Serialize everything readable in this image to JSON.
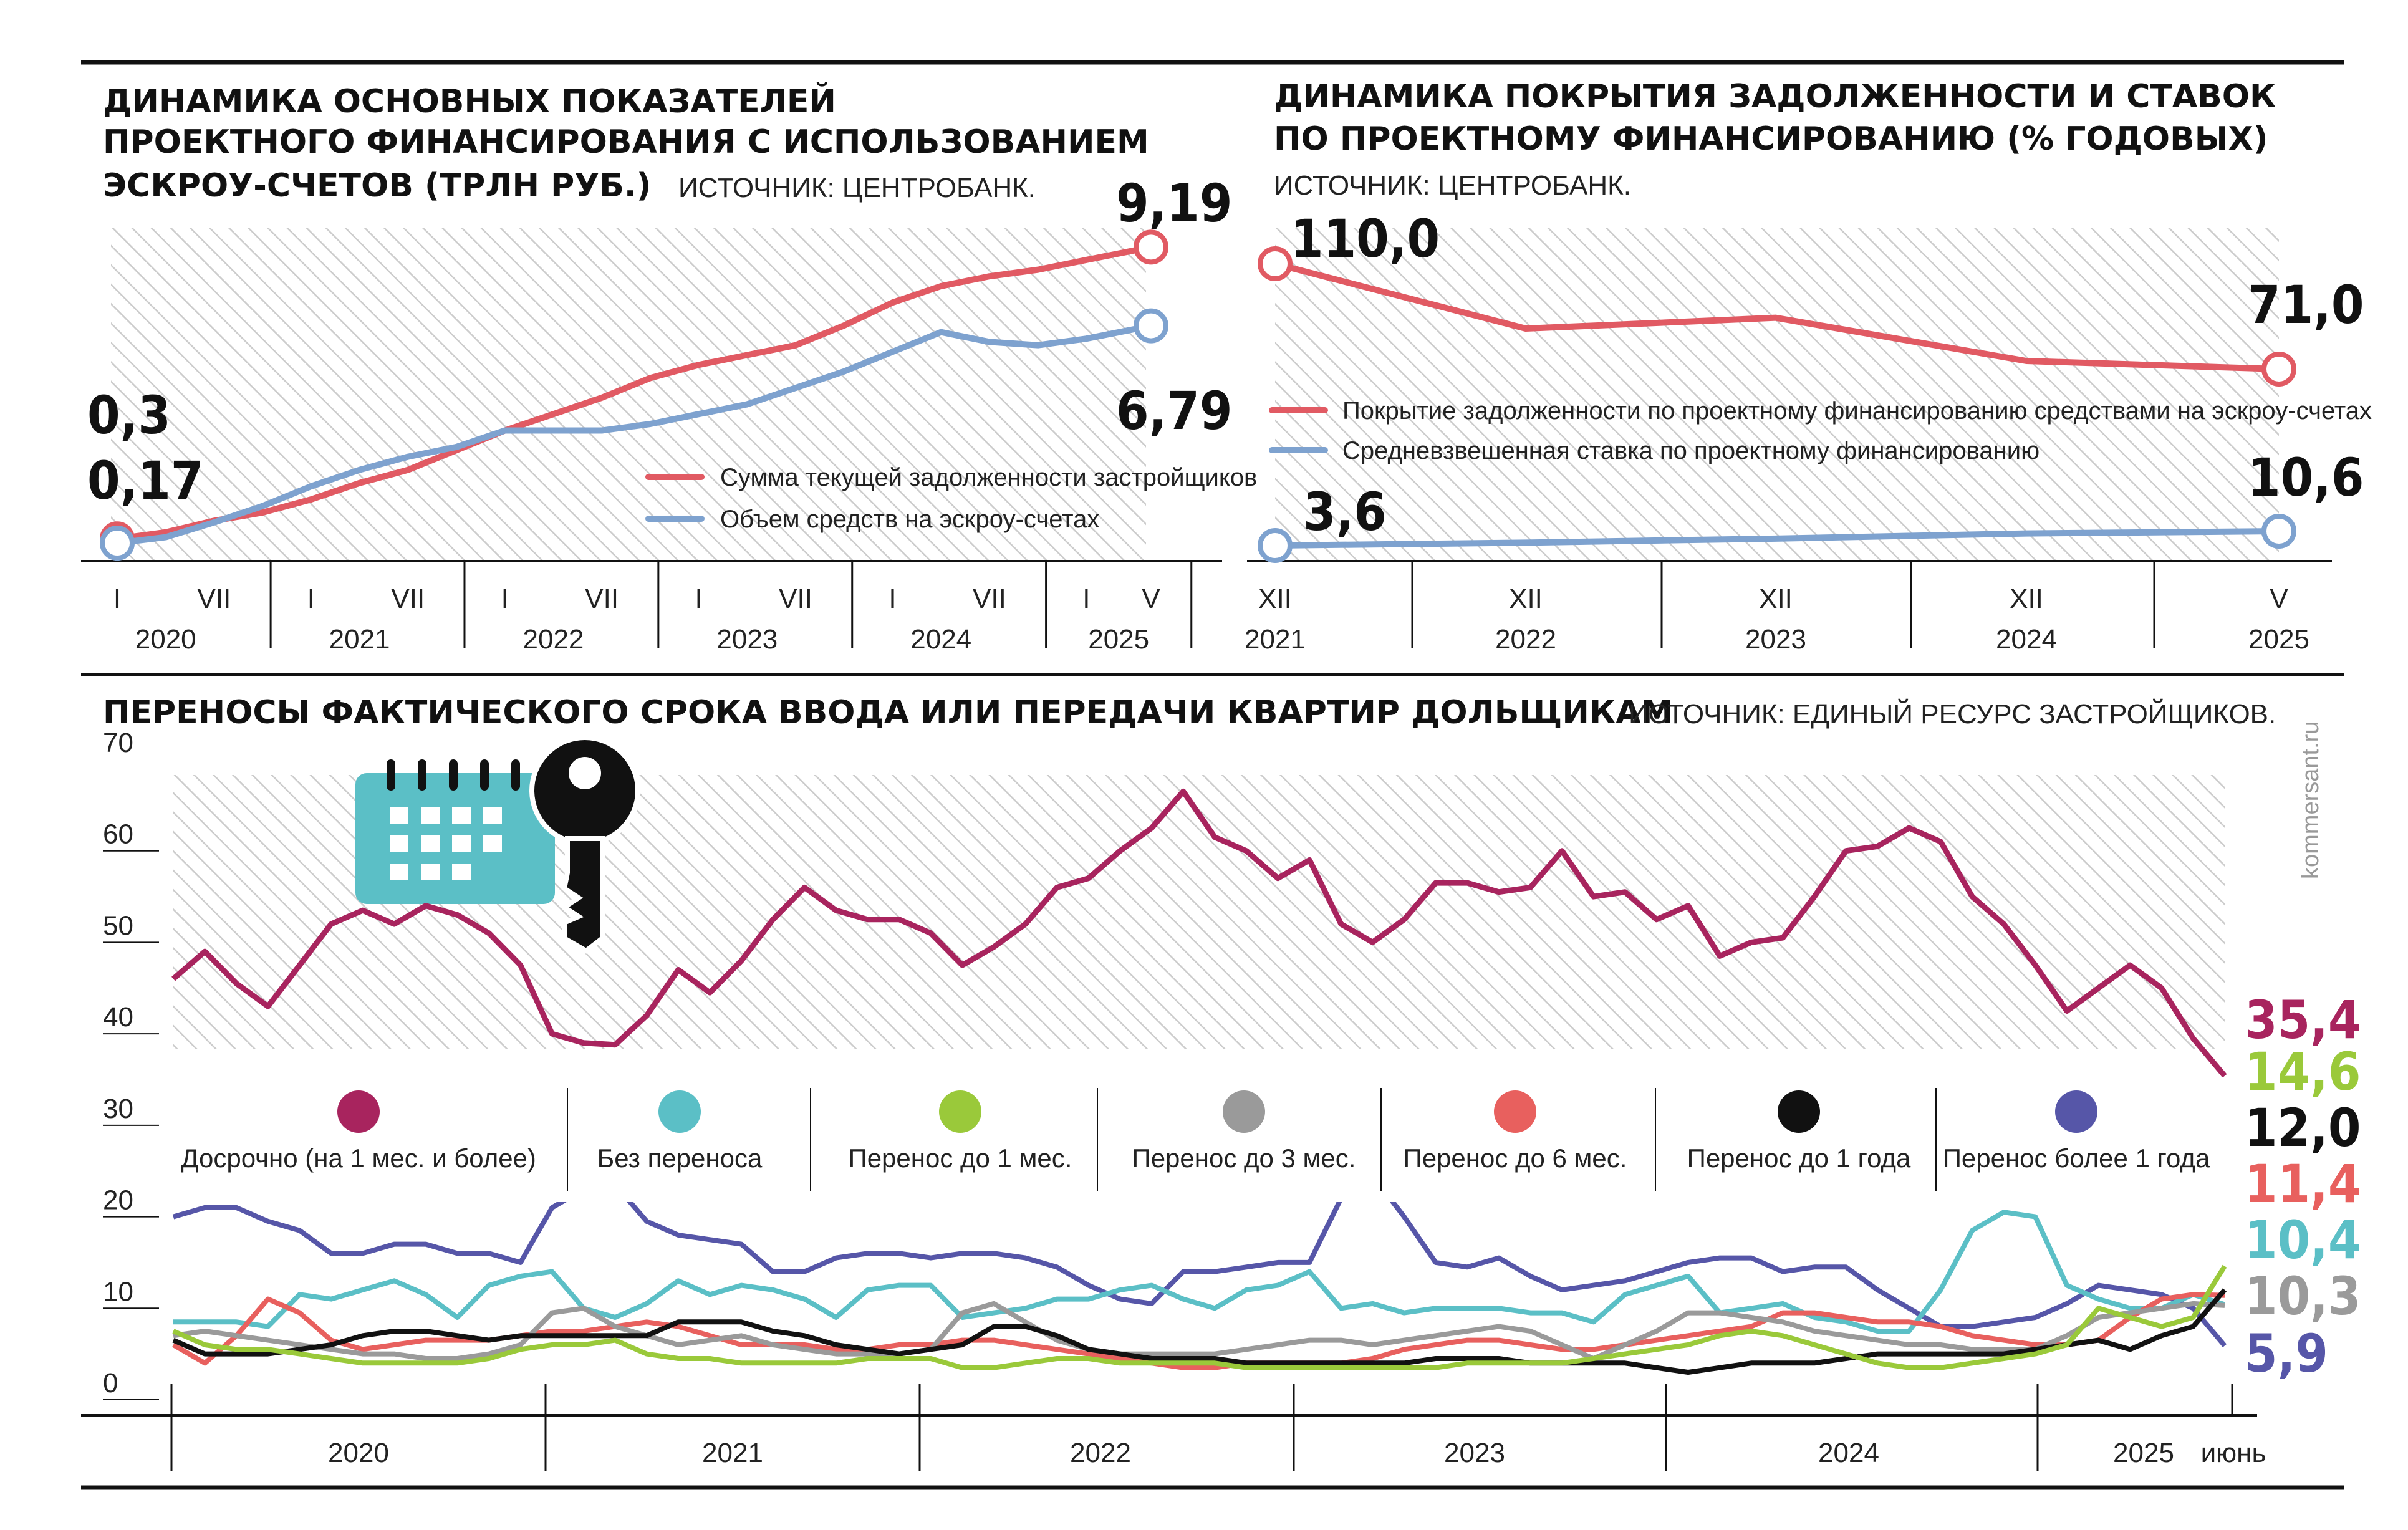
{
  "brand": "kommersant.ru",
  "colors": {
    "red": "#e15a63",
    "blue": "#7ea2cf",
    "purple": "#a8245e",
    "teal": "#5bbfc6",
    "green": "#9ac93a",
    "gray": "#9a9a9a",
    "red2": "#e8605e",
    "black": "#111111",
    "navy": "#5656a8"
  },
  "chart_data": [
    {
      "type": "line",
      "title": "ДИНАМИКА ОСНОВНЫХ ПОКАЗАТЕЛЕЙ ПРОЕКТНОГО ФИНАНСИРОВАНИЯ С ИСПОЛЬЗОВАНИЕМ ЭСКРОУ-СЧЕТОВ (ТРЛН РУБ.)",
      "title_lines": [
        "ДИНАМИКА ОСНОВНЫХ ПОКАЗАТЕЛЕЙ",
        "ПРОЕКТНОГО ФИНАНСИРОВАНИЯ С ИСПОЛЬЗОВАНИЕМ",
        "ЭСКРОУ-СЧЕТОВ (ТРЛН РУБ.)"
      ],
      "source": "ИСТОЧНИК: ЦЕНТРОБАНК.",
      "x_ticks": [
        {
          "top": "I",
          "bottom": "2020"
        },
        {
          "top": "VII",
          "bottom": ""
        },
        {
          "top": "I",
          "bottom": "2021"
        },
        {
          "top": "VII",
          "bottom": ""
        },
        {
          "top": "I",
          "bottom": "2022"
        },
        {
          "top": "VII",
          "bottom": ""
        },
        {
          "top": "I",
          "bottom": "2023"
        },
        {
          "top": "VII",
          "bottom": ""
        },
        {
          "top": "I",
          "bottom": "2024"
        },
        {
          "top": "VII",
          "bottom": ""
        },
        {
          "top": "I",
          "bottom": "2025"
        },
        {
          "top": "V",
          "bottom": ""
        }
      ],
      "year_labels": [
        "2020",
        "2021",
        "2022",
        "2023",
        "2024",
        "2025"
      ],
      "period_labels": [
        "I",
        "VII",
        "I",
        "VII",
        "I",
        "VII",
        "I",
        "VII",
        "I",
        "VII",
        "I",
        "V"
      ],
      "ylim": [
        0,
        9.9
      ],
      "series": [
        {
          "name": "Сумма текущей задолженности застройщиков",
          "x": [
            0,
            3,
            6,
            9,
            12,
            15,
            18,
            21,
            24,
            27,
            30,
            33,
            36,
            39,
            42,
            45,
            48,
            51,
            54,
            57,
            60,
            64
          ],
          "values": [
            0.3,
            0.5,
            0.85,
            1.1,
            1.5,
            2.0,
            2.4,
            3.0,
            3.6,
            4.1,
            4.6,
            5.2,
            5.6,
            5.9,
            6.2,
            6.8,
            7.5,
            8.0,
            8.3,
            8.5,
            8.8,
            9.19
          ],
          "start_label": "0,3",
          "end_label": "9,19"
        },
        {
          "name": "Объем средств на эскроу-счетах",
          "x": [
            0,
            3,
            6,
            9,
            12,
            15,
            18,
            21,
            24,
            27,
            30,
            33,
            36,
            39,
            42,
            45,
            48,
            51,
            54,
            57,
            60,
            64
          ],
          "values": [
            0.17,
            0.35,
            0.8,
            1.3,
            1.9,
            2.4,
            2.8,
            3.1,
            3.6,
            3.6,
            3.6,
            3.8,
            4.1,
            4.4,
            4.9,
            5.4,
            6.0,
            6.6,
            6.3,
            6.2,
            6.4,
            6.79
          ],
          "start_label": "0,17",
          "end_label": "6,79"
        }
      ]
    },
    {
      "type": "line",
      "title": "ДИНАМИКА ПОКРЫТИЯ ЗАДОЛЖЕННОСТИ И СТАВОК ПО ПРОЕКТНОМУ ФИНАНСИРОВАНИЮ (% ГОДОВЫХ)",
      "title_lines": [
        "ДИНАМИКА ПОКРЫТИЯ ЗАДОЛЖЕННОСТИ И СТАВОК",
        "ПО ПРОЕКТНОМУ ФИНАНСИРОВАНИЮ  (% ГОДОВЫХ)"
      ],
      "source": "ИСТОЧНИК: ЦЕНТРОБАНК.",
      "x_ticks": [
        {
          "top": "XII",
          "bottom": "2021"
        },
        {
          "top": "XII",
          "bottom": "2022"
        },
        {
          "top": "XII",
          "bottom": "2023"
        },
        {
          "top": "XII",
          "bottom": "2024"
        },
        {
          "top": "V",
          "bottom": "2025"
        }
      ],
      "series": [
        {
          "name": "Покрытие задолженности по проектному финансированию средствами на эскроу-счетах",
          "x": [
            0,
            1,
            2,
            3,
            3.42
          ],
          "values": [
            110.0,
            86.0,
            90.0,
            74.0,
            71.0
          ],
          "start_label": "110,0",
          "end_label": "71,0"
        },
        {
          "name": "Средневзвешенная ставка по проектному финансированию",
          "x": [
            0,
            1,
            2,
            3,
            3.42
          ],
          "values": [
            3.6,
            5.0,
            7.0,
            9.5,
            10.6
          ],
          "start_label": "3,6",
          "end_label": "10,6"
        }
      ]
    },
    {
      "type": "line",
      "title": "ПЕРЕНОСЫ ФАКТИЧЕСКОГО СРОКА ВВОДА ИЛИ ПЕРЕДАЧИ КВАРТИР ДОЛЬЩИКАМ",
      "source": "ИСТОЧНИК: ЕДИНЫЙ РЕСУРС ЗАСТРОЙЩИКОВ.",
      "y_ticks": [
        "0",
        "10",
        "20",
        "30",
        "40",
        "50",
        "60",
        "70"
      ],
      "x_labels": [
        "2020",
        "2021",
        "2022",
        "2023",
        "2024",
        "2025",
        "июнь"
      ],
      "ylim": [
        0,
        70
      ],
      "series": [
        {
          "name": "Досрочно (на 1 мес. и более)",
          "end_label": "35,4",
          "values": [
            46,
            49,
            45.5,
            43,
            47.5,
            52,
            53.5,
            52,
            54,
            53,
            51,
            47.5,
            40,
            39,
            38.8,
            42,
            47,
            44.5,
            48,
            52.5,
            56,
            53.5,
            52.5,
            52.5,
            51,
            47.5,
            49.5,
            52,
            56,
            57,
            60,
            62.5,
            66.5,
            61.5,
            60,
            57,
            59,
            52,
            50,
            52.5,
            56.5,
            56.5,
            55.5,
            56,
            60,
            55,
            55.5,
            52.5,
            54,
            48.5,
            50,
            50.5,
            55,
            60,
            60.5,
            62.5,
            61,
            55,
            52,
            47.5,
            42.5,
            45,
            47.5,
            45,
            39.5,
            35.4
          ]
        },
        {
          "name": "Без переноса",
          "end_label": "10,4",
          "values": [
            8.5,
            8.5,
            8.5,
            8,
            11.5,
            11,
            12,
            13,
            11.5,
            9,
            12.5,
            13.5,
            14,
            10,
            9,
            10.5,
            13,
            11.5,
            12.5,
            12,
            11,
            9,
            12,
            12.5,
            12.5,
            9,
            9.5,
            10,
            11,
            11,
            12,
            12.5,
            11,
            10,
            12,
            12.5,
            14,
            10,
            10.5,
            9.5,
            10,
            10,
            10,
            9.5,
            9.5,
            8.5,
            11.5,
            12.5,
            13.5,
            9.5,
            10,
            10.5,
            9,
            8.5,
            7.5,
            7.5,
            12,
            18.5,
            20.5,
            20,
            12.5,
            11,
            10,
            10,
            11.5,
            10.4
          ]
        },
        {
          "name": "Перенос до 1 мес.",
          "end_label": "14,6",
          "values": [
            7.5,
            6,
            5.5,
            5.5,
            5,
            4.5,
            4,
            4,
            4,
            4,
            4.5,
            5.5,
            6,
            6,
            6.5,
            5,
            4.5,
            4.5,
            4,
            4,
            4,
            4,
            4.5,
            4.5,
            4.5,
            3.5,
            3.5,
            4,
            4.5,
            4.5,
            4,
            4,
            4,
            4,
            3.5,
            3.5,
            3.5,
            3.5,
            3.5,
            3.5,
            3.5,
            4,
            4,
            4,
            4,
            4.5,
            5,
            5.5,
            6,
            7,
            7.5,
            7,
            6,
            5,
            4,
            3.5,
            3.5,
            4,
            4.5,
            5,
            6,
            10,
            9,
            8,
            9,
            14.6
          ]
        },
        {
          "name": "Перенос до 3 мес.",
          "end_label": "10,3",
          "values": [
            7,
            7.5,
            7,
            6.5,
            6,
            5.5,
            5,
            5,
            4.5,
            4.5,
            5,
            6,
            9.5,
            10,
            8,
            7,
            6,
            6.5,
            7,
            6,
            5.5,
            5,
            5,
            5,
            5.5,
            9.5,
            10.5,
            8.5,
            6.5,
            5.5,
            5,
            5,
            5,
            5,
            5.5,
            6,
            6.5,
            6.5,
            6,
            6.5,
            7,
            7.5,
            8,
            7.5,
            6,
            4.5,
            6,
            7.5,
            9.5,
            9.5,
            9,
            8.5,
            7.5,
            7,
            6.5,
            6,
            6,
            5.5,
            5.5,
            5.5,
            7,
            9,
            9.5,
            10,
            10.5,
            10.3
          ]
        },
        {
          "name": "Перенос до 6 мес.",
          "end_label": "11,4",
          "values": [
            6,
            4,
            7,
            11,
            9.5,
            6.5,
            5.5,
            6,
            6.5,
            6.5,
            6.5,
            7,
            7.5,
            7.5,
            8,
            8.5,
            8,
            7,
            6,
            6,
            6,
            5.5,
            5.5,
            6,
            6,
            6.5,
            6.5,
            6,
            5.5,
            5,
            4.5,
            4,
            3.5,
            3.5,
            4,
            4,
            4,
            4,
            4.5,
            5.5,
            6,
            6.5,
            6.5,
            6,
            5.5,
            5.5,
            6,
            6.5,
            7,
            7.5,
            8,
            9.5,
            9.5,
            9,
            8.5,
            8.5,
            8,
            7,
            6.5,
            6,
            6,
            6.5,
            9,
            11,
            11.5,
            11.4
          ]
        },
        {
          "name": "Перенос до 1 года",
          "end_label": "12,0",
          "values": [
            6.5,
            5,
            5,
            5,
            5.5,
            6,
            7,
            7.5,
            7.5,
            7,
            6.5,
            7,
            7,
            7,
            7,
            7,
            8.5,
            8.5,
            8.5,
            7.5,
            7,
            6,
            5.5,
            5,
            5.5,
            6,
            8,
            8,
            7,
            5.5,
            5,
            4.5,
            4.5,
            4.5,
            4,
            4,
            4,
            4,
            4,
            4,
            4.5,
            4.5,
            4.5,
            4,
            4,
            4,
            4,
            3.5,
            3,
            3.5,
            4,
            4,
            4,
            4.5,
            5,
            5,
            5,
            5,
            5,
            5.5,
            6,
            6.5,
            5.5,
            7,
            8,
            12.0
          ]
        },
        {
          "name": "Перенос более 1 года",
          "end_label": "5,9",
          "values": [
            20,
            21,
            21,
            19.5,
            18.5,
            16,
            16,
            17,
            17,
            16,
            16,
            15,
            21,
            23,
            23.5,
            19.5,
            18,
            17.5,
            17,
            14,
            14,
            15.5,
            16,
            16,
            15.5,
            16,
            16,
            15.5,
            14.5,
            12.5,
            11,
            10.5,
            14,
            14,
            14.5,
            15,
            15,
            22,
            24.5,
            20,
            15,
            14.5,
            15.5,
            13.5,
            12,
            12.5,
            13,
            14,
            15,
            15.5,
            15.5,
            14,
            14.5,
            14.5,
            12,
            10,
            8,
            8,
            8.5,
            9,
            10.5,
            12.5,
            12,
            11.5,
            10,
            5.9
          ]
        }
      ]
    }
  ]
}
